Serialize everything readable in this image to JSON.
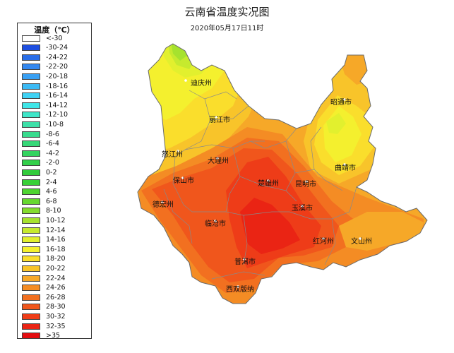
{
  "title": "云南省温度实况图",
  "subtitle": "2020年05月17日11时",
  "legend": {
    "title": "温度（℃）",
    "items": [
      {
        "label": "<-30",
        "color": "#ffffff"
      },
      {
        "label": "-30-24",
        "color": "#1f4fe0"
      },
      {
        "label": "-24-22",
        "color": "#2a6ee8"
      },
      {
        "label": "-22-20",
        "color": "#3388f0"
      },
      {
        "label": "-20-18",
        "color": "#39a0f3"
      },
      {
        "label": "-18-16",
        "color": "#3cbaf5"
      },
      {
        "label": "-16-14",
        "color": "#3fd2f4"
      },
      {
        "label": "-14-12",
        "color": "#3fe6e8"
      },
      {
        "label": "-12-10",
        "color": "#3ee6c8"
      },
      {
        "label": "-10-8",
        "color": "#3ce0a8"
      },
      {
        "label": "-8-6",
        "color": "#38dc8e"
      },
      {
        "label": "-6-4",
        "color": "#36d878"
      },
      {
        "label": "-4-2",
        "color": "#34d460"
      },
      {
        "label": "-2-0",
        "color": "#32d04a"
      },
      {
        "label": "0-2",
        "color": "#32cc3c"
      },
      {
        "label": "2-4",
        "color": "#38d038"
      },
      {
        "label": "4-6",
        "color": "#4ed432"
      },
      {
        "label": "6-8",
        "color": "#66d830"
      },
      {
        "label": "8-10",
        "color": "#84dc2e"
      },
      {
        "label": "10-12",
        "color": "#a6e22e"
      },
      {
        "label": "12-14",
        "color": "#c6ea2e"
      },
      {
        "label": "14-16",
        "color": "#e2f02e"
      },
      {
        "label": "16-18",
        "color": "#f4f02e"
      },
      {
        "label": "18-20",
        "color": "#fade2c"
      },
      {
        "label": "20-22",
        "color": "#f8c42a"
      },
      {
        "label": "22-24",
        "color": "#f6a828"
      },
      {
        "label": "24-26",
        "color": "#f48c24"
      },
      {
        "label": "26-28",
        "color": "#f27020"
      },
      {
        "label": "28-30",
        "color": "#f0561c"
      },
      {
        "label": "30-32",
        "color": "#ee3c18"
      },
      {
        "label": "32-35",
        "color": "#ea2414"
      },
      {
        "label": ">35",
        "color": "#e40c10"
      }
    ]
  },
  "cities": [
    {
      "name": "迪庆州"
    },
    {
      "name": "丽江市"
    },
    {
      "name": "昭通市"
    },
    {
      "name": "怒江州"
    },
    {
      "name": "大理州"
    },
    {
      "name": "曲靖市"
    },
    {
      "name": "保山市"
    },
    {
      "name": "楚雄州"
    },
    {
      "name": "昆明市"
    },
    {
      "name": "德宏州"
    },
    {
      "name": "玉溪市"
    },
    {
      "name": "临沧市"
    },
    {
      "name": "红河州"
    },
    {
      "name": "文山州"
    },
    {
      "name": "普洱市"
    },
    {
      "name": "西双版纳"
    }
  ]
}
